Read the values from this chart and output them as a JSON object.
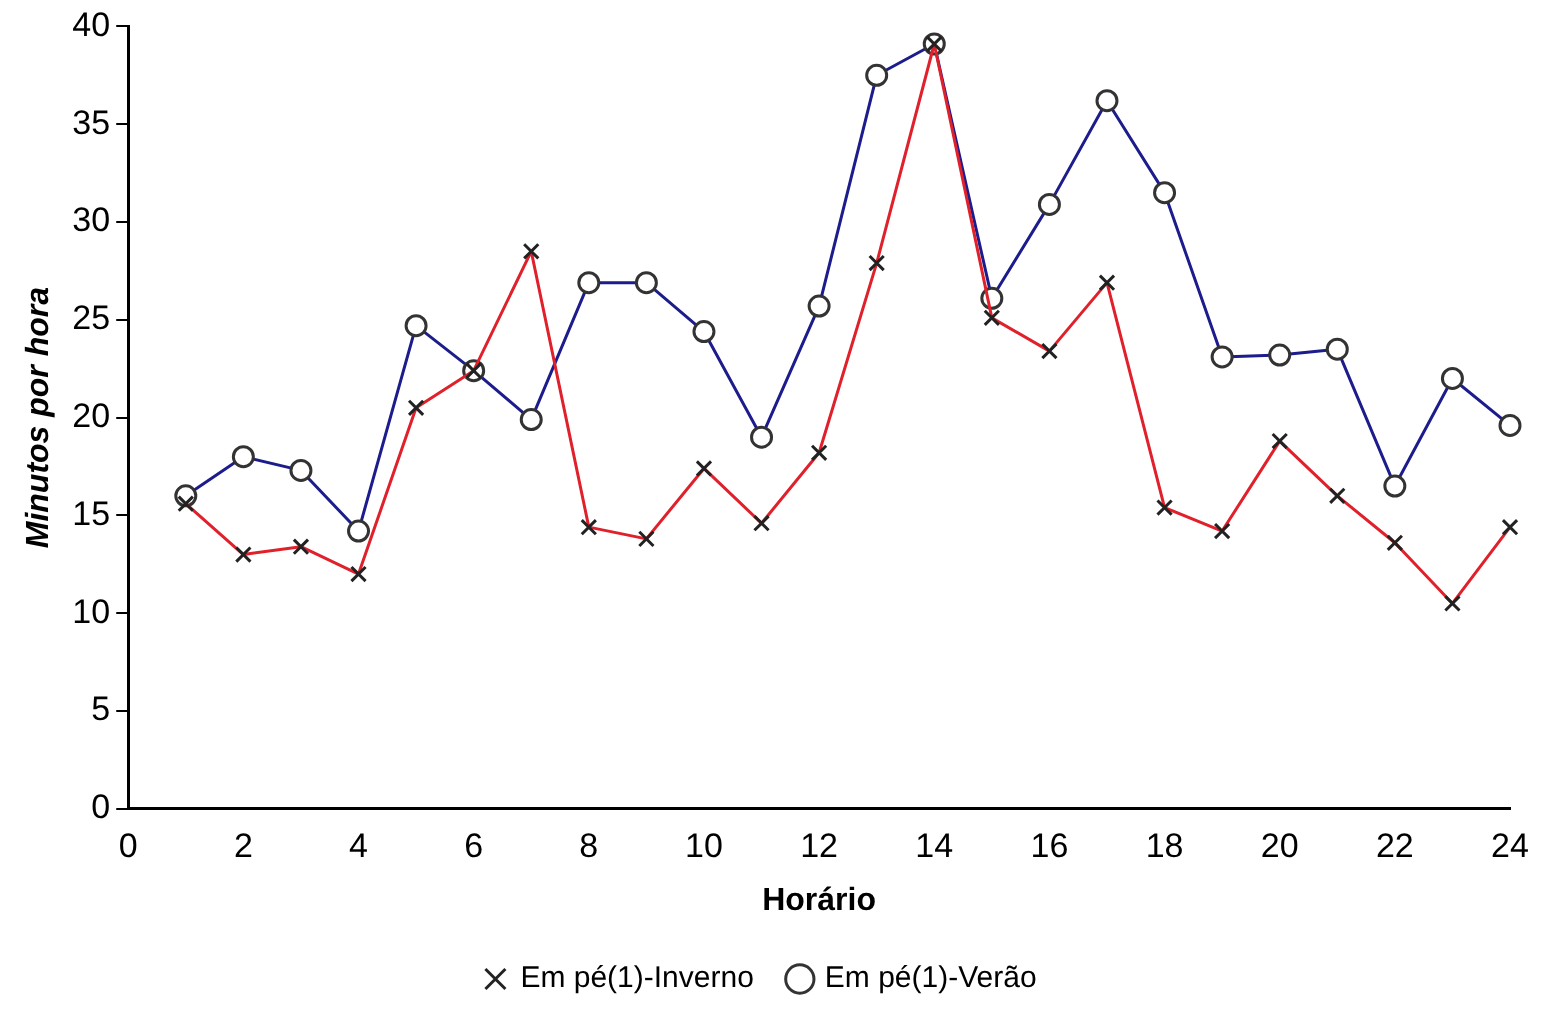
{
  "chart_data": {
    "type": "line",
    "xlabel": "Horário",
    "ylabel": "Minutos por hora",
    "x": [
      1,
      2,
      3,
      4,
      5,
      6,
      7,
      8,
      9,
      10,
      11,
      12,
      13,
      14,
      15,
      16,
      17,
      18,
      19,
      20,
      21,
      22,
      23,
      24
    ],
    "series": [
      {
        "name": "Em pé(1)-Verão",
        "color": "#1c1c8c",
        "marker": "circle",
        "values": [
          16.0,
          18.0,
          17.3,
          14.2,
          24.7,
          22.4,
          19.9,
          26.9,
          26.9,
          24.4,
          19.0,
          25.7,
          37.5,
          39.1,
          26.1,
          30.9,
          36.2,
          31.5,
          23.1,
          23.2,
          23.5,
          16.5,
          22.0,
          19.6
        ]
      },
      {
        "name": "Em pé(1)-Inverno",
        "color": "#e0202a",
        "marker": "cross",
        "values": [
          15.6,
          13.0,
          13.4,
          12.0,
          20.5,
          22.4,
          28.5,
          14.4,
          13.8,
          17.4,
          14.6,
          18.2,
          27.9,
          39.1,
          25.1,
          23.4,
          26.9,
          15.4,
          14.2,
          18.8,
          16.0,
          13.6,
          10.5,
          14.4
        ]
      }
    ],
    "xlim": [
      0,
      24
    ],
    "xticks": [
      0,
      2,
      4,
      6,
      8,
      10,
      12,
      14,
      16,
      18,
      20,
      22,
      24
    ],
    "ylim": [
      0,
      40
    ],
    "yticks": [
      0,
      5,
      10,
      15,
      20,
      25,
      30,
      35,
      40
    ],
    "grid": false,
    "legend": "bottom",
    "line_style": "solid"
  }
}
